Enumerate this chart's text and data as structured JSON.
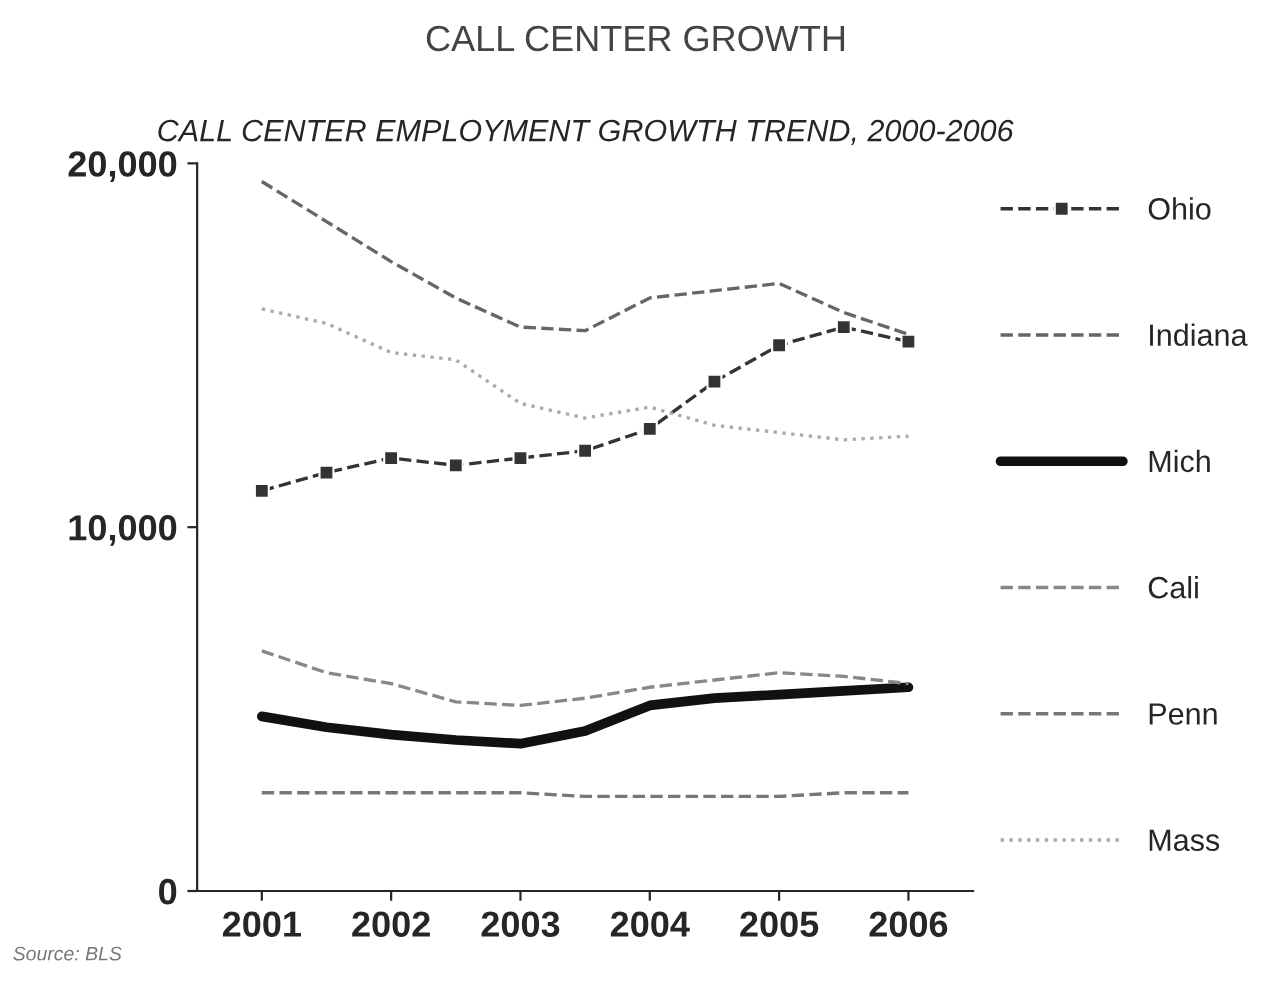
{
  "chart_data": {
    "type": "line",
    "title": "CALL CENTER GROWTH",
    "subtitle": "CALL CENTER EMPLOYMENT GROWTH TREND, 2000-2006",
    "x": [
      2001,
      2001.5,
      2002,
      2002.5,
      2003,
      2003.5,
      2004,
      2004.5,
      2005,
      2005.5,
      2006
    ],
    "series": [
      {
        "name": "Ohio",
        "color": "#333333",
        "marker": "square",
        "line_style": "dashed",
        "values": [
          11000,
          11500,
          11900,
          11700,
          11900,
          12100,
          12700,
          14000,
          15000,
          15500,
          15100
        ]
      },
      {
        "name": "Indiana",
        "color": "#666666",
        "marker": "none",
        "line_style": "dashed",
        "values": [
          19500,
          18400,
          17300,
          16300,
          15500,
          15400,
          16300,
          16500,
          16700,
          15900,
          15300
        ]
      },
      {
        "name": "Mich",
        "color": "#111111",
        "marker": "none",
        "line_style": "solid",
        "values": [
          4800,
          4500,
          4300,
          4150,
          4050,
          4400,
          5100,
          5300,
          5400,
          5500,
          5600
        ]
      },
      {
        "name": "Cali",
        "color": "#888888",
        "marker": "none",
        "line_style": "dashed",
        "values": [
          6600,
          6000,
          5700,
          5200,
          5100,
          5300,
          5600,
          5800,
          6000,
          5900,
          5700
        ]
      },
      {
        "name": "Penn",
        "color": "#777777",
        "marker": "none",
        "line_style": "dashed",
        "values": [
          2700,
          2700,
          2700,
          2700,
          2700,
          2600,
          2600,
          2600,
          2600,
          2700,
          2700
        ]
      },
      {
        "name": "Mass",
        "color": "#aaaaaa",
        "marker": "none",
        "line_style": "dotted",
        "values": [
          16000,
          15600,
          14800,
          14600,
          13400,
          13000,
          13300,
          12800,
          12600,
          12400,
          12500
        ]
      }
    ],
    "xlim": [
      2000.5,
      2006.5
    ],
    "xticks": [
      2001,
      2002,
      2003,
      2004,
      2005,
      2006
    ],
    "ylim": [
      0,
      20000
    ],
    "yticks": [
      {
        "value": 0,
        "label": "0"
      },
      {
        "value": 10000,
        "label": "10,000"
      },
      {
        "value": 20000,
        "label": "20,000"
      }
    ],
    "grid": false,
    "legend": "right",
    "annotations": [
      "Source: BLS"
    ]
  }
}
